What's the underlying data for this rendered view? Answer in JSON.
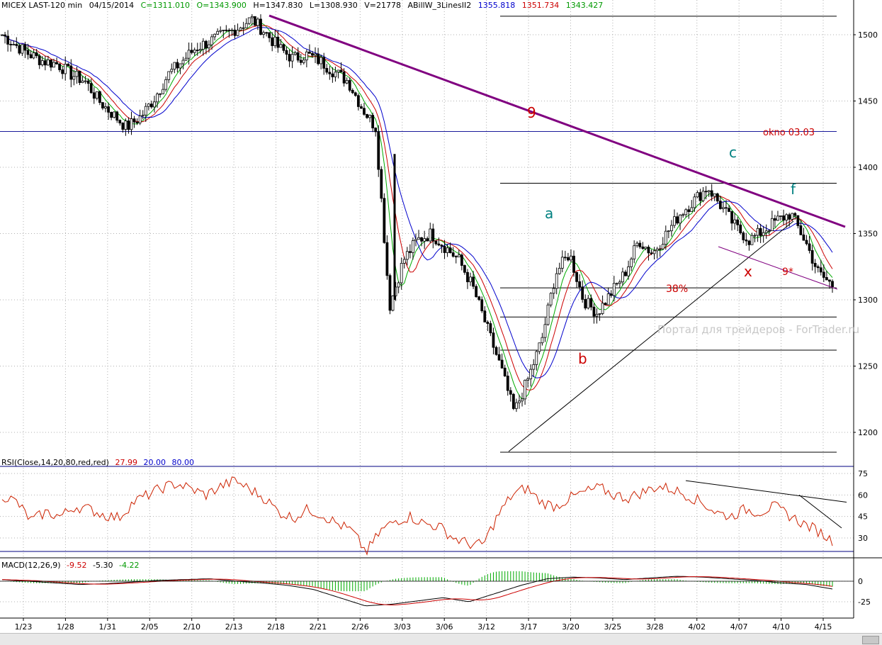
{
  "header": {
    "instrument": "MICEX LAST-120 min",
    "date": "04/15/2014",
    "close": "C=1311.010",
    "open": "O=1343.900",
    "high": "H=1347.830",
    "low": "L=1308.930",
    "volume": "V=21778",
    "indicator": "ABillW_3LinesII2",
    "ind_values": [
      "1355.818",
      "1351.734",
      "1343.427"
    ]
  },
  "rsi_header": {
    "label": "RSI(Close,14,20,80,red,red)",
    "value": "27.99",
    "lo": "20.00",
    "hi": "80.00"
  },
  "macd_header": {
    "label": "MACD(12,26,9)",
    "v1": "-9.52",
    "v2": "-5.30",
    "v3": "-4.22"
  },
  "price_axis": [
    "1500",
    "1450",
    "1400",
    "1350",
    "1300",
    "1250",
    "1200"
  ],
  "rsi_axis": [
    "75",
    "60",
    "45",
    "30"
  ],
  "macd_axis": [
    "0",
    "-25"
  ],
  "date_axis": [
    "1/23",
    "1/28",
    "1/31",
    "2/05",
    "2/10",
    "2/13",
    "2/18",
    "2/21",
    "2/26",
    "3/03",
    "3/06",
    "3/12",
    "3/17",
    "3/20",
    "3/25",
    "3/28",
    "4/02",
    "4/07",
    "4/10",
    "4/15"
  ],
  "annotations": {
    "nine": "9",
    "okno": "okno 03.03",
    "a": "a",
    "b": "b",
    "c": "c",
    "f": "f",
    "x": "x",
    "nine_star": "9*",
    "fib": "38%",
    "watermark": "Портал для трейдеров - ForTrader.ru"
  },
  "colors": {
    "candle": "#000000",
    "ma_fast": "#00aa00",
    "ma_mid": "#cc0000",
    "ma_slow": "#0000cc",
    "trend": "#800080",
    "rsi": "#cc2200",
    "grid": "#b0b0b0",
    "label_teal": "#008080",
    "label_red": "#cc0000"
  },
  "chart_data": [
    {
      "type": "candlestick",
      "title": "MICEX LAST-120 min",
      "ylim": [
        1180,
        1520
      ],
      "x": [
        "1/23",
        "1/28",
        "1/31",
        "2/05",
        "2/10",
        "2/13",
        "2/18",
        "2/21",
        "2/26",
        "3/03",
        "3/06",
        "3/12",
        "3/17",
        "3/20",
        "3/25",
        "3/28",
        "4/02",
        "4/07",
        "4/10",
        "4/15"
      ],
      "close_path": [
        1500,
        1492,
        1485,
        1480,
        1478,
        1470,
        1465,
        1450,
        1440,
        1430,
        1438,
        1452,
        1470,
        1480,
        1490,
        1495,
        1500,
        1505,
        1512,
        1502,
        1490,
        1482,
        1485,
        1480,
        1472,
        1465,
        1445,
        1430,
        1295,
        1330,
        1345,
        1350,
        1340,
        1330,
        1310,
        1280,
        1250,
        1215,
        1240,
        1270,
        1320,
        1335,
        1300,
        1290,
        1305,
        1320,
        1345,
        1335,
        1350,
        1365,
        1375,
        1385,
        1370,
        1355,
        1345,
        1352,
        1360,
        1365,
        1345,
        1320,
        1311
      ],
      "levels": [
        {
          "name": "okno 03.03",
          "value": 1427
        },
        {
          "name": "38%",
          "value": 1309
        },
        {
          "name": "",
          "value": 1287
        },
        {
          "name": "",
          "value": 1262
        },
        {
          "name": "",
          "value": 1388
        },
        {
          "name": "",
          "value": 1514
        },
        {
          "name": "",
          "value": 1185
        }
      ]
    },
    {
      "type": "line",
      "title": "RSI(Close,14,20,80,red,red)",
      "ylim": [
        15,
        85
      ],
      "series": [
        {
          "name": "RSI",
          "values": [
            60,
            55,
            42,
            48,
            45,
            52,
            50,
            46,
            44,
            55,
            60,
            65,
            68,
            64,
            60,
            66,
            70,
            64,
            58,
            48,
            44,
            50,
            46,
            40,
            35,
            20,
            35,
            42,
            45,
            40,
            38,
            30,
            26,
            25,
            45,
            60,
            65,
            55,
            52,
            58,
            62,
            65,
            60,
            58,
            62,
            66,
            64,
            60,
            55,
            48,
            45,
            50,
            48,
            52,
            46,
            40,
            35,
            28
          ]
        }
      ]
    },
    {
      "type": "line",
      "title": "MACD(12,26,9)",
      "ylim": [
        -35,
        12
      ],
      "series": [
        {
          "name": "MACD",
          "values": [
            2,
            0,
            -2,
            -4,
            -3,
            -1,
            1,
            2,
            3,
            0,
            -2,
            -5,
            -10,
            -20,
            -30,
            -28,
            -24,
            -20,
            -25,
            -15,
            -5,
            3,
            5,
            4,
            2,
            4,
            6,
            5,
            3,
            1,
            -2,
            -4,
            -9.52
          ]
        }
      ]
    }
  ]
}
